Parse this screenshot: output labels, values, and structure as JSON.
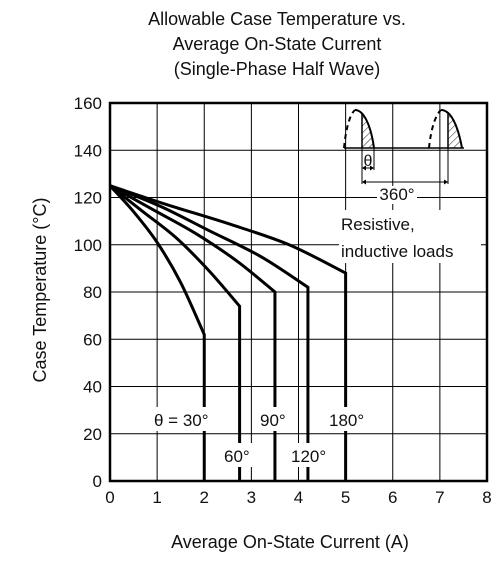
{
  "chart_data": {
    "type": "line",
    "title_lines": [
      "Allowable Case Temperature vs.",
      "Average On-State Current",
      "(Single-Phase Half Wave)"
    ],
    "xlabel": "Average On-State Current  (A)",
    "ylabel": "Case Temperature  (°C)",
    "xlim": [
      0,
      8
    ],
    "ylim": [
      0,
      160
    ],
    "x_ticks": [
      0,
      1,
      2,
      3,
      4,
      5,
      6,
      7,
      8
    ],
    "y_ticks": [
      0,
      20,
      40,
      60,
      80,
      100,
      120,
      140,
      160
    ],
    "grid": true,
    "series": [
      {
        "name": "θ = 30°",
        "points": [
          [
            0,
            125
          ],
          [
            0.5,
            114
          ],
          [
            1.0,
            101
          ],
          [
            1.5,
            84
          ],
          [
            2.0,
            62
          ],
          [
            2.0,
            0
          ]
        ]
      },
      {
        "name": "60°",
        "points": [
          [
            0,
            125
          ],
          [
            0.7,
            114
          ],
          [
            1.4,
            103
          ],
          [
            2.1,
            89
          ],
          [
            2.75,
            74
          ],
          [
            2.75,
            0
          ]
        ]
      },
      {
        "name": "90°",
        "points": [
          [
            0,
            125
          ],
          [
            0.9,
            115
          ],
          [
            1.8,
            105
          ],
          [
            2.7,
            93
          ],
          [
            3.5,
            80
          ],
          [
            3.5,
            0
          ]
        ]
      },
      {
        "name": "120°",
        "points": [
          [
            0,
            125
          ],
          [
            1.1,
            116
          ],
          [
            2.1,
            106
          ],
          [
            3.2,
            95
          ],
          [
            4.2,
            82
          ],
          [
            4.2,
            0
          ]
        ]
      },
      {
        "name": "180°",
        "points": [
          [
            0,
            125
          ],
          [
            1.2,
            117
          ],
          [
            2.5,
            109
          ],
          [
            3.8,
            100
          ],
          [
            5.0,
            88
          ],
          [
            5.0,
            0
          ]
        ]
      }
    ],
    "series_label_text": [
      "θ = 30°",
      "60°",
      "90°",
      "120°",
      "180°"
    ],
    "inset": {
      "theta_label": "θ",
      "period_label": "360°",
      "note_lines": [
        "Resistive,",
        "inductive loads"
      ]
    }
  }
}
